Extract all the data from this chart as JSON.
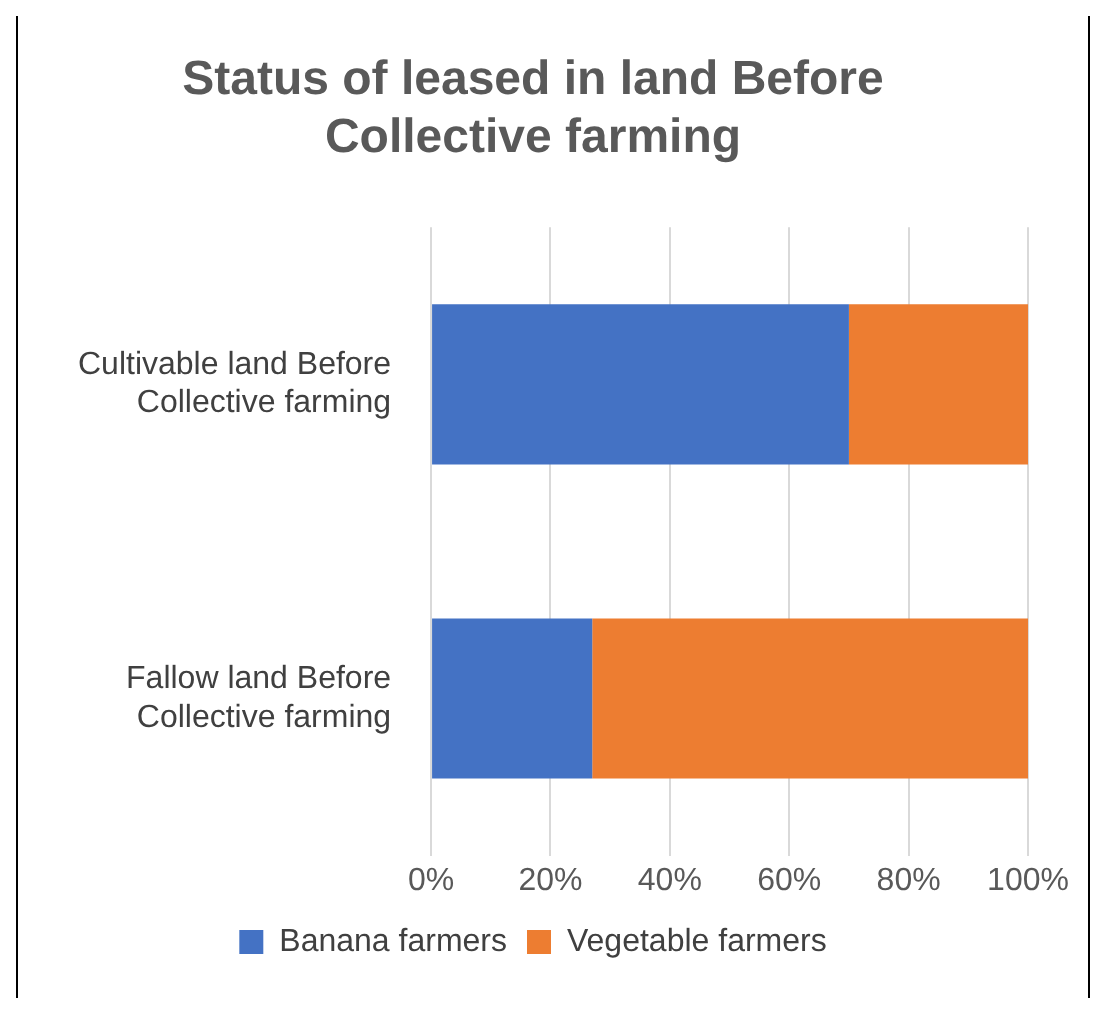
{
  "chart_data": {
    "type": "bar",
    "orientation": "horizontal",
    "stacked": true,
    "title": "Status of leased in land Before Collective farming",
    "categories": [
      "Cultivable land Before Collective farming",
      "Fallow land Before Collective farming"
    ],
    "series": [
      {
        "name": "Banana farmers",
        "color": "#4472c4",
        "values": [
          70,
          27
        ]
      },
      {
        "name": "Vegetable farmers",
        "color": "#ed7d31",
        "values": [
          30,
          73
        ]
      }
    ],
    "xlim": [
      0,
      100
    ],
    "xticks": [
      {
        "value": 0,
        "label": "0%"
      },
      {
        "value": 20,
        "label": "20%"
      },
      {
        "value": 40,
        "label": "40%"
      },
      {
        "value": 60,
        "label": "60%"
      },
      {
        "value": 80,
        "label": "80%"
      },
      {
        "value": 100,
        "label": "100%"
      }
    ],
    "grid": "x",
    "legend": "bottom"
  }
}
